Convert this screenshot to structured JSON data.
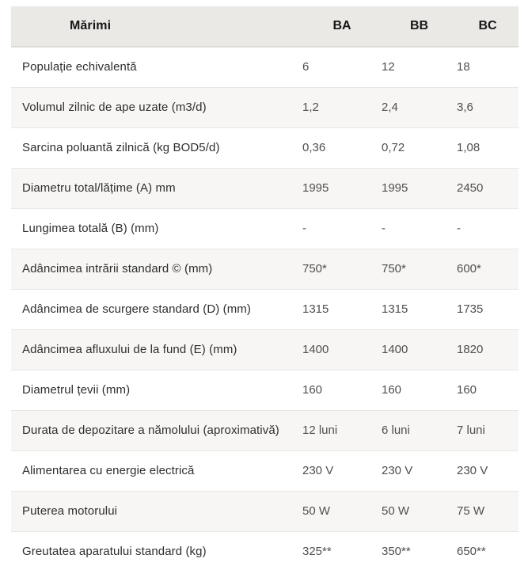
{
  "table": {
    "header": {
      "label": "Mărimi",
      "columns": [
        "BA",
        "BB",
        "BC"
      ]
    },
    "rows": [
      {
        "label": "Populație echivalentă",
        "values": [
          "6",
          "12",
          "18"
        ]
      },
      {
        "label": "Volumul zilnic de ape uzate (m3/d)",
        "values": [
          "1,2",
          "2,4",
          "3,6"
        ]
      },
      {
        "label": "Sarcina poluantă zilnică (kg BOD5/d)",
        "values": [
          "0,36",
          "0,72",
          "1,08"
        ]
      },
      {
        "label": "Diametru total/lățime (A) mm",
        "values": [
          "1995",
          "1995",
          "2450"
        ]
      },
      {
        "label": "Lungimea totală (B) (mm)",
        "values": [
          "-",
          "-",
          "-"
        ]
      },
      {
        "label": "Adâncimea intrării standard © (mm)",
        "values": [
          "750*",
          "750*",
          "600*"
        ]
      },
      {
        "label": "Adâncimea de scurgere standard (D) (mm)",
        "values": [
          "1315",
          "1315",
          "1735"
        ]
      },
      {
        "label": "Adâncimea afluxului de la fund (E) (mm)",
        "values": [
          "1400",
          "1400",
          "1820"
        ]
      },
      {
        "label": "Diametrul țevii (mm)",
        "values": [
          "160",
          "160",
          "160"
        ]
      },
      {
        "label": "Durata de depozitare a nămolului (aproximativă)",
        "values": [
          "12 luni",
          "6 luni",
          "7 luni"
        ]
      },
      {
        "label": "Alimentarea cu energie electrică",
        "values": [
          "230 V",
          "230 V",
          "230 V"
        ]
      },
      {
        "label": "Puterea motorului",
        "values": [
          "50 W",
          "50 W",
          "75 W"
        ]
      },
      {
        "label": "Greutatea aparatului standard (kg)",
        "values": [
          "325**",
          "350**",
          "650**"
        ]
      }
    ]
  },
  "colors": {
    "header_bg": "#ebe9e6",
    "alt_row_bg": "#f7f6f4",
    "row_border": "#e9e7e4",
    "label_text": "#2e2e2e",
    "value_text": "#4f4f4f",
    "header_text": "#161616"
  }
}
